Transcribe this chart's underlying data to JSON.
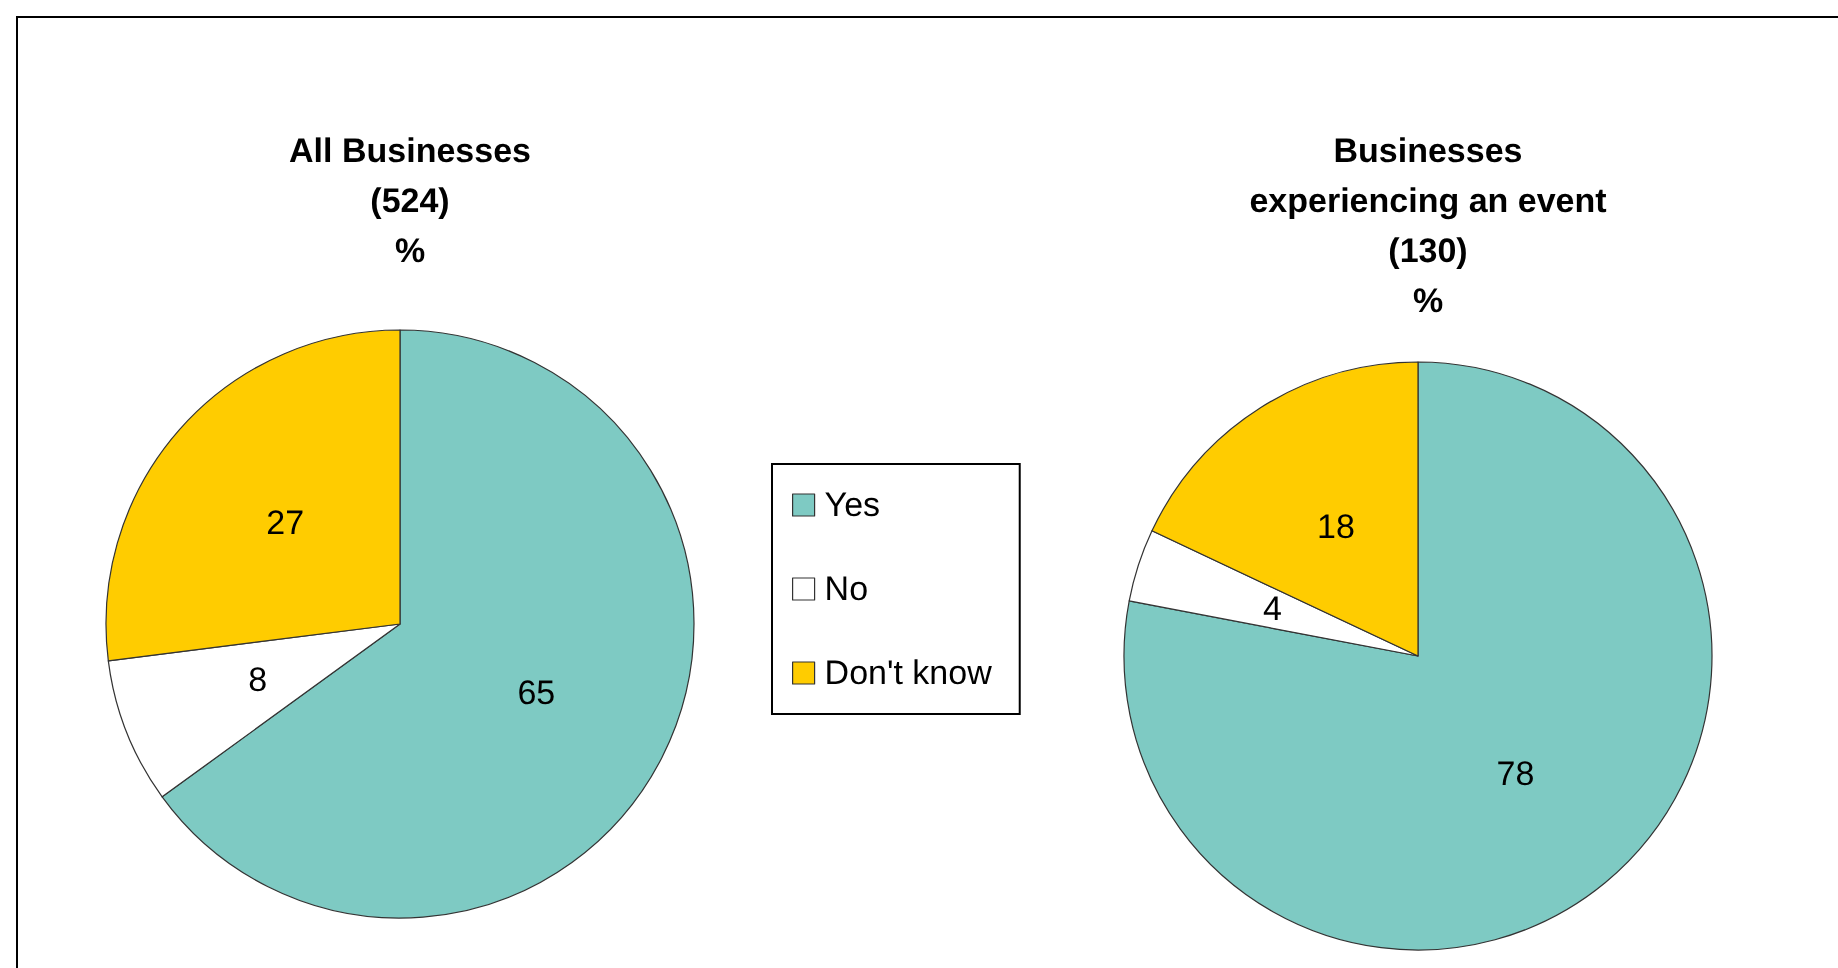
{
  "chart_data": [
    {
      "type": "pie",
      "title": "All Businesses\n(524)\n%",
      "categories": [
        "Yes",
        "No",
        "Don't know"
      ],
      "values": [
        65,
        8,
        27
      ],
      "colors": [
        "#7ecac3",
        "#ffffff",
        "#ffcc00"
      ],
      "data_labels": true,
      "legend": "right"
    },
    {
      "type": "pie",
      "title": "Businesses\nexperiencing an event\n(130)\n%",
      "categories": [
        null,
        null,
        null
      ],
      "values": [
        78,
        4,
        18
      ],
      "colors": [
        "#7ecac3",
        "#ffffff",
        "#ffcc00"
      ],
      "data_labels": true,
      "legend": false
    }
  ]
}
